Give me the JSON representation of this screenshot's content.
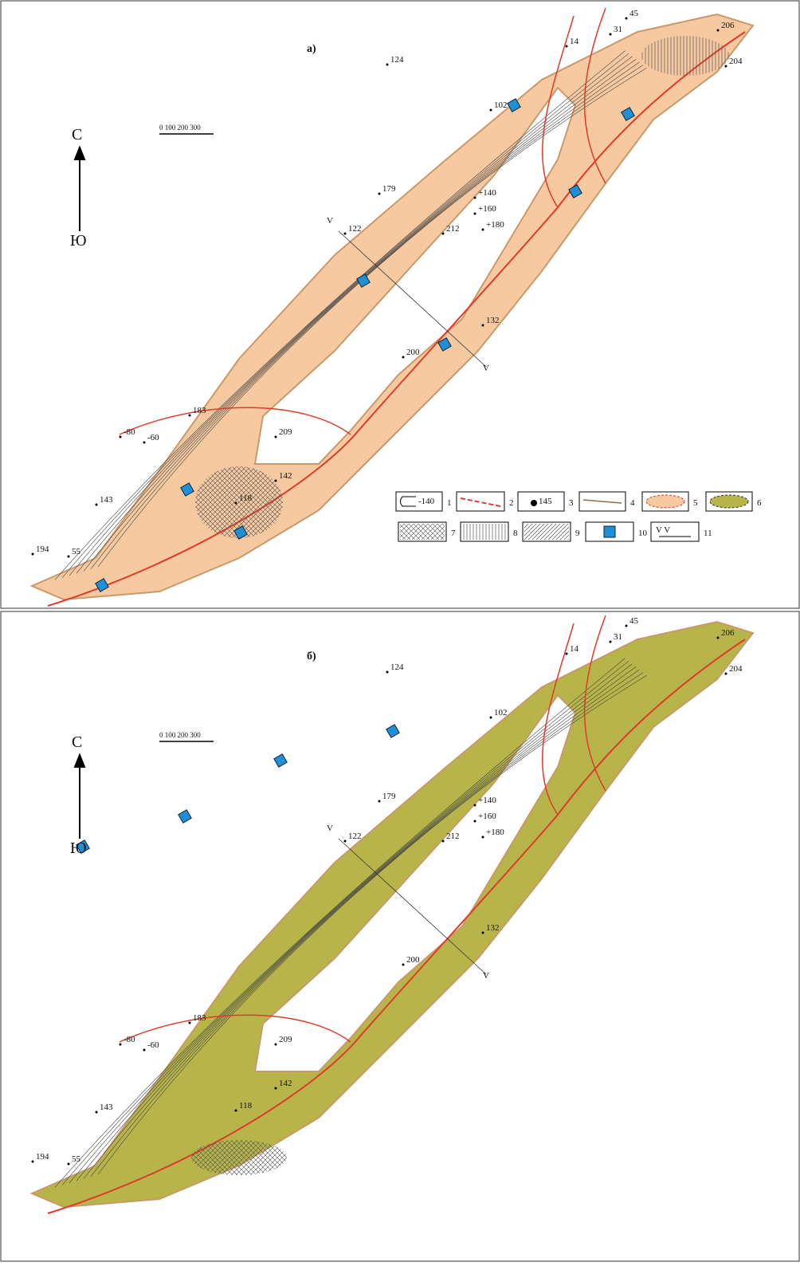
{
  "panels": [
    {
      "label": "а)"
    },
    {
      "label": "б)"
    }
  ],
  "compass": {
    "north": "С",
    "south": "Ю"
  },
  "scale": "0  100  200  300",
  "section": "V",
  "spot_labels": [
    "124",
    "102",
    "14",
    "31",
    "45",
    "206",
    "204",
    "122",
    "183",
    "194",
    "55",
    "143",
    "209",
    "200",
    "142",
    "118",
    "-80",
    "-60",
    "179",
    "212",
    "+140",
    "+160",
    "+180",
    "132"
  ],
  "legend": [
    {
      "number": "1",
      "sample": "-140"
    },
    {
      "number": "2"
    },
    {
      "number": "3",
      "sample": "145"
    },
    {
      "number": "4"
    },
    {
      "number": "5"
    },
    {
      "number": "6"
    },
    {
      "number": "7"
    },
    {
      "number": "8"
    },
    {
      "number": "9"
    },
    {
      "number": "10"
    },
    {
      "number": "11",
      "sample": "V    V"
    }
  ]
}
